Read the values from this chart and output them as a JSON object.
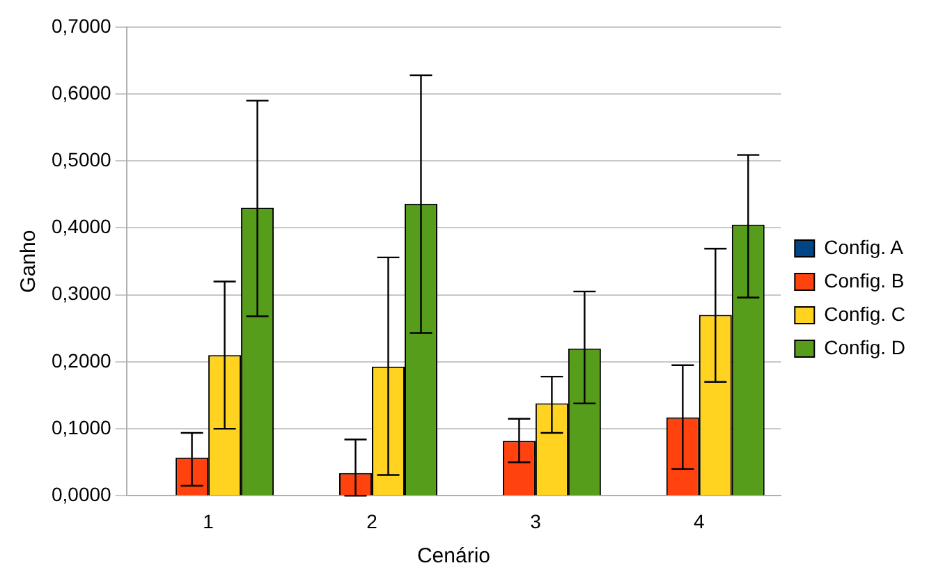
{
  "chart_data": {
    "type": "bar",
    "xlabel": "Cenário",
    "ylabel": "Ganho",
    "categories": [
      "1",
      "2",
      "3",
      "4"
    ],
    "series": [
      {
        "name": "Config. A",
        "color": "#004586",
        "values": [
          0,
          0,
          0,
          0
        ]
      },
      {
        "name": "Config. B",
        "color": "#ff420e",
        "values": [
          0.057,
          0.034,
          0.082,
          0.117
        ],
        "errors": [
          [
            0.015,
            0.094
          ],
          [
            0,
            0.084
          ],
          [
            0.05,
            0.115
          ],
          [
            0.04,
            0.195
          ]
        ]
      },
      {
        "name": "Config. C",
        "color": "#ffd320",
        "values": [
          0.21,
          0.193,
          0.138,
          0.27
        ],
        "errors": [
          [
            0.1,
            0.32
          ],
          [
            0.031,
            0.356
          ],
          [
            0.094,
            0.178
          ],
          [
            0.17,
            0.369
          ]
        ]
      },
      {
        "name": "Config. D",
        "color": "#579d1c",
        "values": [
          0.43,
          0.436,
          0.22,
          0.405
        ],
        "errors": [
          [
            0.268,
            0.59
          ],
          [
            0.243,
            0.628
          ],
          [
            0.138,
            0.305
          ],
          [
            0.296,
            0.509
          ]
        ]
      }
    ],
    "ylim": [
      0,
      0.7
    ],
    "yticks": [
      {
        "value": 0,
        "label": "0,0000"
      },
      {
        "value": 0.1,
        "label": "0,1000"
      },
      {
        "value": 0.2,
        "label": "0,2000"
      },
      {
        "value": 0.3,
        "label": "0,3000"
      },
      {
        "value": 0.4,
        "label": "0,4000"
      },
      {
        "value": 0.5,
        "label": "0,5000"
      },
      {
        "value": 0.6,
        "label": "0,6000"
      },
      {
        "value": 0.7,
        "label": "0,7000"
      }
    ],
    "grid": "y",
    "legend": "right"
  }
}
